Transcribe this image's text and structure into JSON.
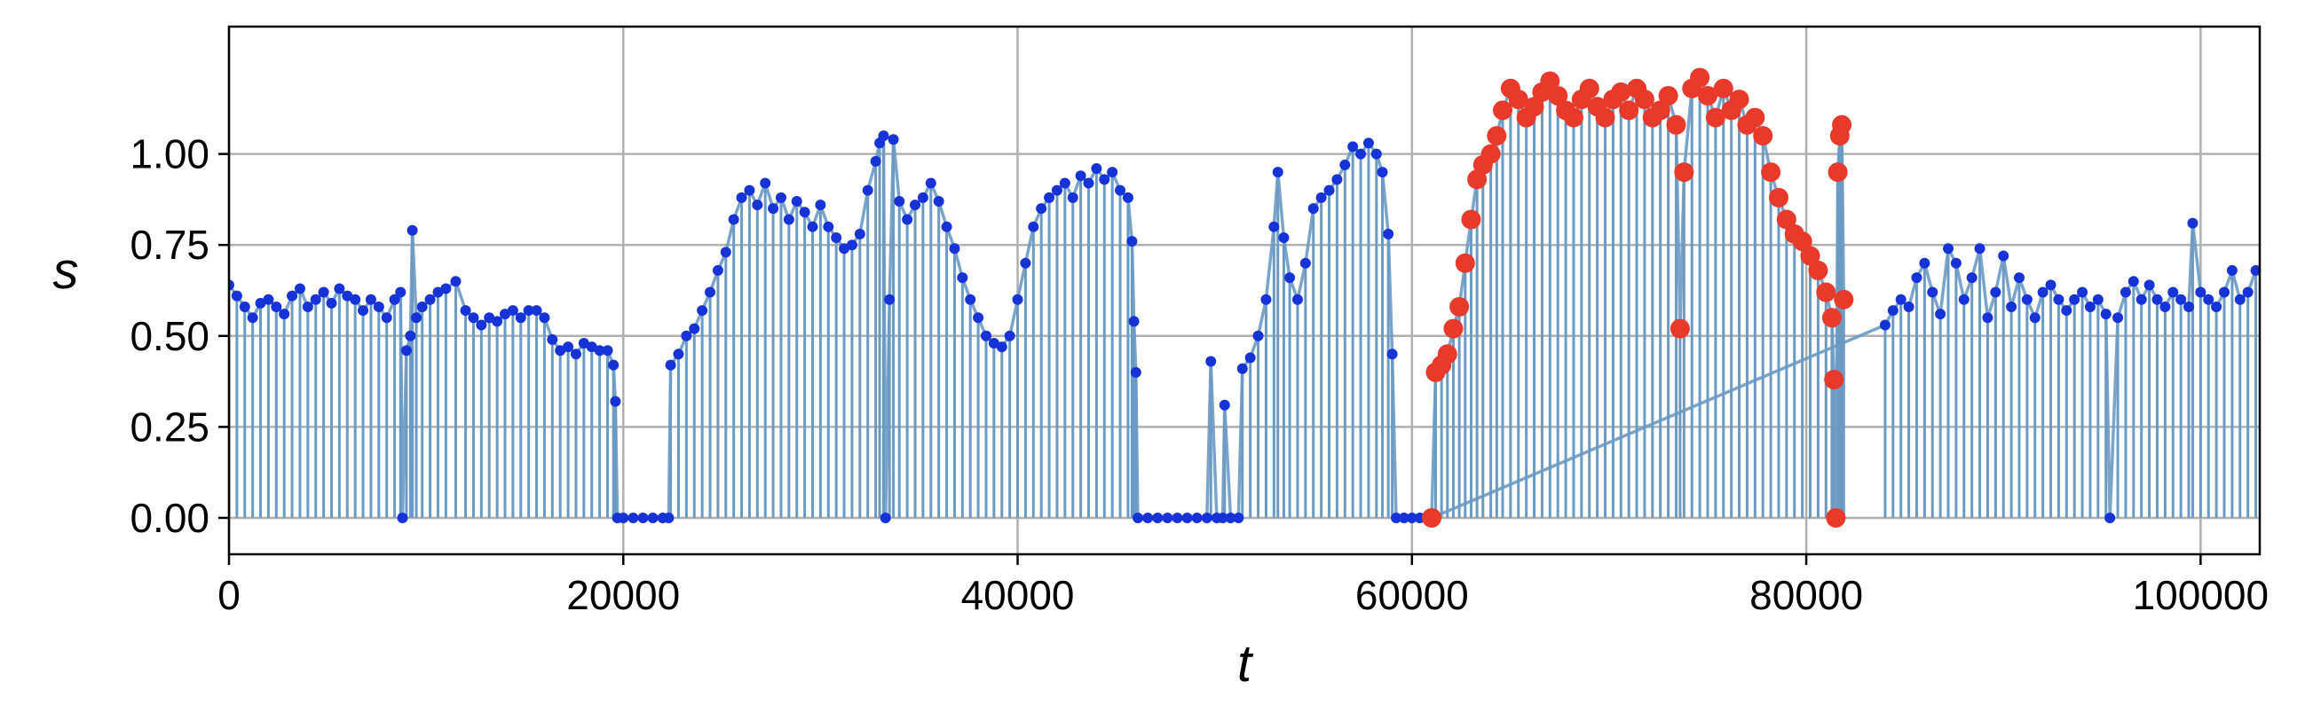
{
  "chart_data": {
    "type": "scatter",
    "title": "",
    "xlabel": "t",
    "ylabel": "s",
    "xlim": [
      0,
      103000
    ],
    "ylim": [
      -0.1,
      1.35
    ],
    "xticks": [
      0,
      20000,
      40000,
      60000,
      80000,
      100000
    ],
    "xtick_labels": [
      "0",
      "20000",
      "40000",
      "60000",
      "80000",
      "100000"
    ],
    "yticks": [
      0.0,
      0.25,
      0.5,
      0.75,
      1.0
    ],
    "ytick_labels": [
      "0.00",
      "0.25",
      "0.50",
      "0.75",
      "1.00"
    ],
    "grid": true,
    "colors": {
      "stem": "#6b9ac4",
      "point": "#1533d6",
      "highlight": "#e8392b"
    },
    "series": [
      {
        "key": "base",
        "style": "stem-scatter",
        "points": [
          [
            0,
            0.64
          ],
          [
            400,
            0.61
          ],
          [
            800,
            0.58
          ],
          [
            1200,
            0.55
          ],
          [
            1600,
            0.59
          ],
          [
            2000,
            0.6
          ],
          [
            2400,
            0.58
          ],
          [
            2800,
            0.56
          ],
          [
            3200,
            0.61
          ],
          [
            3600,
            0.63
          ],
          [
            4000,
            0.58
          ],
          [
            4400,
            0.6
          ],
          [
            4800,
            0.62
          ],
          [
            5200,
            0.59
          ],
          [
            5600,
            0.63
          ],
          [
            6000,
            0.61
          ],
          [
            6400,
            0.6
          ],
          [
            6800,
            0.57
          ],
          [
            7200,
            0.6
          ],
          [
            7600,
            0.58
          ],
          [
            8000,
            0.55
          ],
          [
            8400,
            0.6
          ],
          [
            8700,
            0.62
          ],
          [
            8800,
            0.0
          ],
          [
            9000,
            0.46
          ],
          [
            9200,
            0.5
          ],
          [
            9300,
            0.79
          ],
          [
            9500,
            0.55
          ],
          [
            9800,
            0.58
          ],
          [
            10200,
            0.6
          ],
          [
            10600,
            0.62
          ],
          [
            11000,
            0.63
          ],
          [
            11500,
            0.65
          ],
          [
            12000,
            0.57
          ],
          [
            12400,
            0.55
          ],
          [
            12800,
            0.53
          ],
          [
            13200,
            0.55
          ],
          [
            13600,
            0.54
          ],
          [
            14000,
            0.56
          ],
          [
            14400,
            0.57
          ],
          [
            14800,
            0.55
          ],
          [
            15200,
            0.57
          ],
          [
            15600,
            0.57
          ],
          [
            16000,
            0.55
          ],
          [
            16400,
            0.49
          ],
          [
            16800,
            0.46
          ],
          [
            17200,
            0.47
          ],
          [
            17600,
            0.45
          ],
          [
            18000,
            0.48
          ],
          [
            18400,
            0.47
          ],
          [
            18800,
            0.46
          ],
          [
            19200,
            0.46
          ],
          [
            19500,
            0.42
          ],
          [
            19600,
            0.32
          ],
          [
            19700,
            0.0
          ],
          [
            20000,
            0.0
          ],
          [
            20500,
            0.0
          ],
          [
            21000,
            0.0
          ],
          [
            21500,
            0.0
          ],
          [
            22000,
            0.0
          ],
          [
            22300,
            0.0
          ],
          [
            22400,
            0.42
          ],
          [
            22800,
            0.45
          ],
          [
            23200,
            0.5
          ],
          [
            23600,
            0.52
          ],
          [
            24000,
            0.57
          ],
          [
            24400,
            0.62
          ],
          [
            24800,
            0.68
          ],
          [
            25200,
            0.73
          ],
          [
            25600,
            0.82
          ],
          [
            26000,
            0.88
          ],
          [
            26400,
            0.9
          ],
          [
            26800,
            0.86
          ],
          [
            27200,
            0.92
          ],
          [
            27600,
            0.85
          ],
          [
            28000,
            0.88
          ],
          [
            28400,
            0.82
          ],
          [
            28800,
            0.87
          ],
          [
            29200,
            0.84
          ],
          [
            29600,
            0.8
          ],
          [
            30000,
            0.86
          ],
          [
            30400,
            0.8
          ],
          [
            30800,
            0.77
          ],
          [
            31200,
            0.74
          ],
          [
            31600,
            0.75
          ],
          [
            32000,
            0.78
          ],
          [
            32400,
            0.9
          ],
          [
            32800,
            0.98
          ],
          [
            33000,
            1.03
          ],
          [
            33200,
            1.05
          ],
          [
            33300,
            0.0
          ],
          [
            33500,
            0.6
          ],
          [
            33700,
            1.04
          ],
          [
            34000,
            0.87
          ],
          [
            34400,
            0.82
          ],
          [
            34800,
            0.86
          ],
          [
            35200,
            0.88
          ],
          [
            35600,
            0.92
          ],
          [
            36000,
            0.87
          ],
          [
            36400,
            0.8
          ],
          [
            36800,
            0.74
          ],
          [
            37200,
            0.66
          ],
          [
            37600,
            0.6
          ],
          [
            38000,
            0.55
          ],
          [
            38400,
            0.5
          ],
          [
            38800,
            0.48
          ],
          [
            39200,
            0.47
          ],
          [
            39600,
            0.5
          ],
          [
            40000,
            0.6
          ],
          [
            40400,
            0.7
          ],
          [
            40800,
            0.8
          ],
          [
            41200,
            0.85
          ],
          [
            41600,
            0.88
          ],
          [
            42000,
            0.9
          ],
          [
            42400,
            0.92
          ],
          [
            42800,
            0.88
          ],
          [
            43200,
            0.94
          ],
          [
            43600,
            0.92
          ],
          [
            44000,
            0.96
          ],
          [
            44400,
            0.93
          ],
          [
            44800,
            0.95
          ],
          [
            45200,
            0.9
          ],
          [
            45600,
            0.88
          ],
          [
            45800,
            0.76
          ],
          [
            45900,
            0.54
          ],
          [
            46000,
            0.4
          ],
          [
            46100,
            0.0
          ],
          [
            46600,
            0.0
          ],
          [
            47100,
            0.0
          ],
          [
            47600,
            0.0
          ],
          [
            48100,
            0.0
          ],
          [
            48600,
            0.0
          ],
          [
            49100,
            0.0
          ],
          [
            49600,
            0.0
          ],
          [
            49800,
            0.43
          ],
          [
            50100,
            0.0
          ],
          [
            50400,
            0.0
          ],
          [
            50500,
            0.31
          ],
          [
            50800,
            0.0
          ],
          [
            51200,
            0.0
          ],
          [
            51400,
            0.41
          ],
          [
            51800,
            0.44
          ],
          [
            52200,
            0.5
          ],
          [
            52600,
            0.6
          ],
          [
            53000,
            0.8
          ],
          [
            53200,
            0.95
          ],
          [
            53500,
            0.77
          ],
          [
            53800,
            0.66
          ],
          [
            54200,
            0.6
          ],
          [
            54600,
            0.7
          ],
          [
            55000,
            0.85
          ],
          [
            55400,
            0.88
          ],
          [
            55800,
            0.9
          ],
          [
            56200,
            0.93
          ],
          [
            56600,
            0.97
          ],
          [
            57000,
            1.02
          ],
          [
            57400,
            1.0
          ],
          [
            57800,
            1.03
          ],
          [
            58200,
            1.0
          ],
          [
            58500,
            0.95
          ],
          [
            58800,
            0.78
          ],
          [
            59000,
            0.45
          ],
          [
            59200,
            0.0
          ],
          [
            59600,
            0.0
          ],
          [
            60000,
            0.0
          ],
          [
            60400,
            0.0
          ],
          [
            61000,
            0.0
          ],
          [
            84000,
            0.53
          ],
          [
            84400,
            0.57
          ],
          [
            84800,
            0.6
          ],
          [
            85200,
            0.58
          ],
          [
            85600,
            0.66
          ],
          [
            86000,
            0.7
          ],
          [
            86400,
            0.62
          ],
          [
            86800,
            0.56
          ],
          [
            87200,
            0.74
          ],
          [
            87600,
            0.7
          ],
          [
            88000,
            0.6
          ],
          [
            88400,
            0.66
          ],
          [
            88800,
            0.74
          ],
          [
            89200,
            0.55
          ],
          [
            89600,
            0.62
          ],
          [
            90000,
            0.72
          ],
          [
            90400,
            0.58
          ],
          [
            90800,
            0.66
          ],
          [
            91200,
            0.6
          ],
          [
            91600,
            0.55
          ],
          [
            92000,
            0.62
          ],
          [
            92400,
            0.64
          ],
          [
            92800,
            0.6
          ],
          [
            93200,
            0.57
          ],
          [
            93600,
            0.6
          ],
          [
            94000,
            0.62
          ],
          [
            94400,
            0.58
          ],
          [
            94800,
            0.6
          ],
          [
            95200,
            0.56
          ],
          [
            95400,
            0.0
          ],
          [
            95800,
            0.55
          ],
          [
            96200,
            0.62
          ],
          [
            96600,
            0.65
          ],
          [
            97000,
            0.6
          ],
          [
            97400,
            0.64
          ],
          [
            97800,
            0.6
          ],
          [
            98200,
            0.58
          ],
          [
            98600,
            0.62
          ],
          [
            99000,
            0.6
          ],
          [
            99400,
            0.58
          ],
          [
            99600,
            0.81
          ],
          [
            100000,
            0.62
          ],
          [
            100400,
            0.6
          ],
          [
            100800,
            0.58
          ],
          [
            101200,
            0.62
          ],
          [
            101600,
            0.68
          ],
          [
            102000,
            0.6
          ],
          [
            102400,
            0.62
          ],
          [
            102800,
            0.68
          ]
        ]
      },
      {
        "key": "highlight",
        "style": "stem-scatter",
        "points": [
          [
            61000,
            0.0
          ],
          [
            61200,
            0.4
          ],
          [
            61500,
            0.42
          ],
          [
            61800,
            0.45
          ],
          [
            62100,
            0.52
          ],
          [
            62400,
            0.58
          ],
          [
            62700,
            0.7
          ],
          [
            63000,
            0.82
          ],
          [
            63300,
            0.93
          ],
          [
            63600,
            0.97
          ],
          [
            64000,
            1.0
          ],
          [
            64300,
            1.05
          ],
          [
            64600,
            1.12
          ],
          [
            65000,
            1.18
          ],
          [
            65400,
            1.15
          ],
          [
            65800,
            1.1
          ],
          [
            66200,
            1.13
          ],
          [
            66600,
            1.17
          ],
          [
            67000,
            1.2
          ],
          [
            67400,
            1.16
          ],
          [
            67800,
            1.12
          ],
          [
            68200,
            1.1
          ],
          [
            68600,
            1.15
          ],
          [
            69000,
            1.18
          ],
          [
            69400,
            1.13
          ],
          [
            69800,
            1.1
          ],
          [
            70200,
            1.15
          ],
          [
            70600,
            1.17
          ],
          [
            71000,
            1.12
          ],
          [
            71400,
            1.18
          ],
          [
            71800,
            1.15
          ],
          [
            72200,
            1.1
          ],
          [
            72600,
            1.12
          ],
          [
            73000,
            1.16
          ],
          [
            73400,
            1.08
          ],
          [
            73600,
            0.52
          ],
          [
            73800,
            0.95
          ],
          [
            74200,
            1.18
          ],
          [
            74600,
            1.21
          ],
          [
            75000,
            1.16
          ],
          [
            75400,
            1.1
          ],
          [
            75800,
            1.18
          ],
          [
            76200,
            1.12
          ],
          [
            76600,
            1.15
          ],
          [
            77000,
            1.08
          ],
          [
            77400,
            1.1
          ],
          [
            77800,
            1.05
          ],
          [
            78200,
            0.95
          ],
          [
            78600,
            0.88
          ],
          [
            79000,
            0.82
          ],
          [
            79400,
            0.78
          ],
          [
            79800,
            0.76
          ],
          [
            80200,
            0.72
          ],
          [
            80600,
            0.68
          ],
          [
            81000,
            0.62
          ],
          [
            81300,
            0.55
          ],
          [
            81400,
            0.38
          ],
          [
            81500,
            0.0
          ],
          [
            81600,
            0.95
          ],
          [
            81700,
            1.05
          ],
          [
            81800,
            1.08
          ],
          [
            81900,
            0.6
          ]
        ]
      }
    ]
  }
}
